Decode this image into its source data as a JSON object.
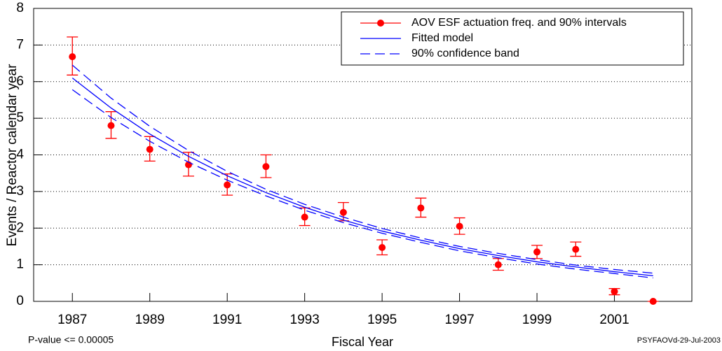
{
  "chart_data": {
    "type": "line",
    "x_label": "Fiscal Year",
    "y_label": "Events / Reactor calendar year",
    "footnote_left": "P-value <= 0.00005",
    "footnote_right": "PSYFAOVd-29-Jul-2003",
    "x": [
      1987,
      1988,
      1989,
      1990,
      1991,
      1992,
      1993,
      1994,
      1995,
      1996,
      1997,
      1998,
      1999,
      2000,
      2001,
      2002
    ],
    "xlim": [
      1986,
      2003
    ],
    "xticks": [
      1987,
      1989,
      1991,
      1993,
      1995,
      1997,
      1999,
      2001
    ],
    "ylim": [
      0,
      8
    ],
    "yticks": [
      0,
      1,
      2,
      3,
      4,
      5,
      6,
      7,
      8
    ],
    "grid": true,
    "legend": "top-right",
    "series": [
      {
        "name": "AOV ESF actuation freq. and 90% intervals",
        "color": "#ff0000",
        "style": "points",
        "values": [
          6.68,
          4.8,
          4.15,
          3.73,
          3.18,
          3.68,
          2.3,
          2.43,
          1.47,
          2.55,
          2.05,
          1.0,
          1.35,
          1.42,
          0.27,
          0.0
        ],
        "lower": [
          6.18,
          4.45,
          3.83,
          3.42,
          2.9,
          3.38,
          2.07,
          2.2,
          1.27,
          2.3,
          1.83,
          0.85,
          1.17,
          1.23,
          0.18,
          0.0
        ],
        "upper": [
          7.22,
          5.18,
          4.5,
          4.07,
          3.48,
          4.0,
          2.55,
          2.7,
          1.68,
          2.82,
          2.28,
          1.17,
          1.53,
          1.62,
          0.35,
          0.0
        ]
      },
      {
        "name": "Fitted model",
        "color": "#0000ff",
        "style": "solid",
        "values": [
          6.1,
          5.28,
          4.57,
          3.96,
          3.43,
          2.97,
          2.57,
          2.22,
          1.92,
          1.67,
          1.44,
          1.25,
          1.08,
          0.94,
          0.81,
          0.7
        ]
      },
      {
        "name": "90% confidence band",
        "color": "#0000ff",
        "style": "dashed",
        "upper": [
          6.45,
          5.55,
          4.78,
          4.12,
          3.55,
          3.06,
          2.65,
          2.3,
          1.99,
          1.73,
          1.5,
          1.31,
          1.14,
          0.99,
          0.87,
          0.77
        ],
        "lower": [
          5.78,
          5.02,
          4.37,
          3.8,
          3.31,
          2.88,
          2.49,
          2.15,
          1.86,
          1.61,
          1.38,
          1.19,
          1.02,
          0.88,
          0.76,
          0.64
        ]
      }
    ]
  }
}
